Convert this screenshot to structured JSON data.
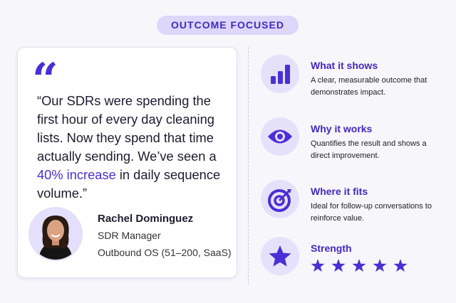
{
  "badge": "OUTCOME FOCUSED",
  "testimonial": {
    "quote_before": "“Our SDRs were spending the first hour of every day cleaning lists. Now they spend that time actually sending. We’ve seen a ",
    "quote_highlight": "40% increase",
    "quote_after": " in daily sequence volume.”",
    "name": "Rachel Dominguez",
    "role": "SDR Manager",
    "company": "Outbound OS (51–200, SaaS)"
  },
  "items": [
    {
      "title": "What it shows",
      "description": "A clear, measurable outcome that demonstrates impact."
    },
    {
      "title": "Why it works",
      "description": "Quantifies the result and shows a direct improvement."
    },
    {
      "title": "Where it fits",
      "description": "Ideal for follow-up conversations to reinforce value."
    },
    {
      "title": "Strength",
      "rating": 5
    }
  ]
}
